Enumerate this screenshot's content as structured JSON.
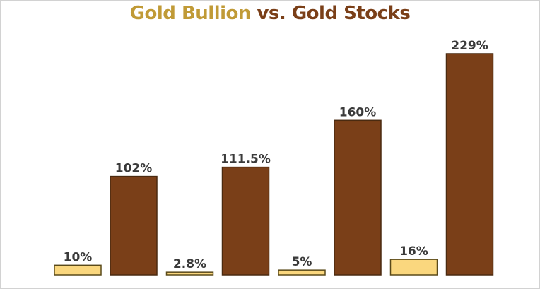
{
  "chart_data": {
    "type": "bar",
    "title_parts": [
      "Gold Bullion",
      "vs.",
      "Gold Stocks"
    ],
    "series": [
      {
        "name": "Gold Bullion",
        "values": [
          10,
          2.8,
          5,
          16
        ]
      },
      {
        "name": "Gold Stocks",
        "values": [
          102,
          111.5,
          160,
          229
        ]
      }
    ],
    "labels": [
      [
        "10%",
        "102%"
      ],
      [
        "2.8%",
        "111.5%"
      ],
      [
        "5%",
        "160%"
      ],
      [
        "16%",
        "229%"
      ]
    ],
    "ylim": [
      0,
      229
    ],
    "xlabel": "",
    "ylabel": "",
    "colors": {
      "bullion_fill": "#fad77e",
      "bullion_stroke": "#5a4a1a",
      "stocks_fill": "#7a3f18",
      "stocks_stroke": "#4a2a10"
    }
  }
}
